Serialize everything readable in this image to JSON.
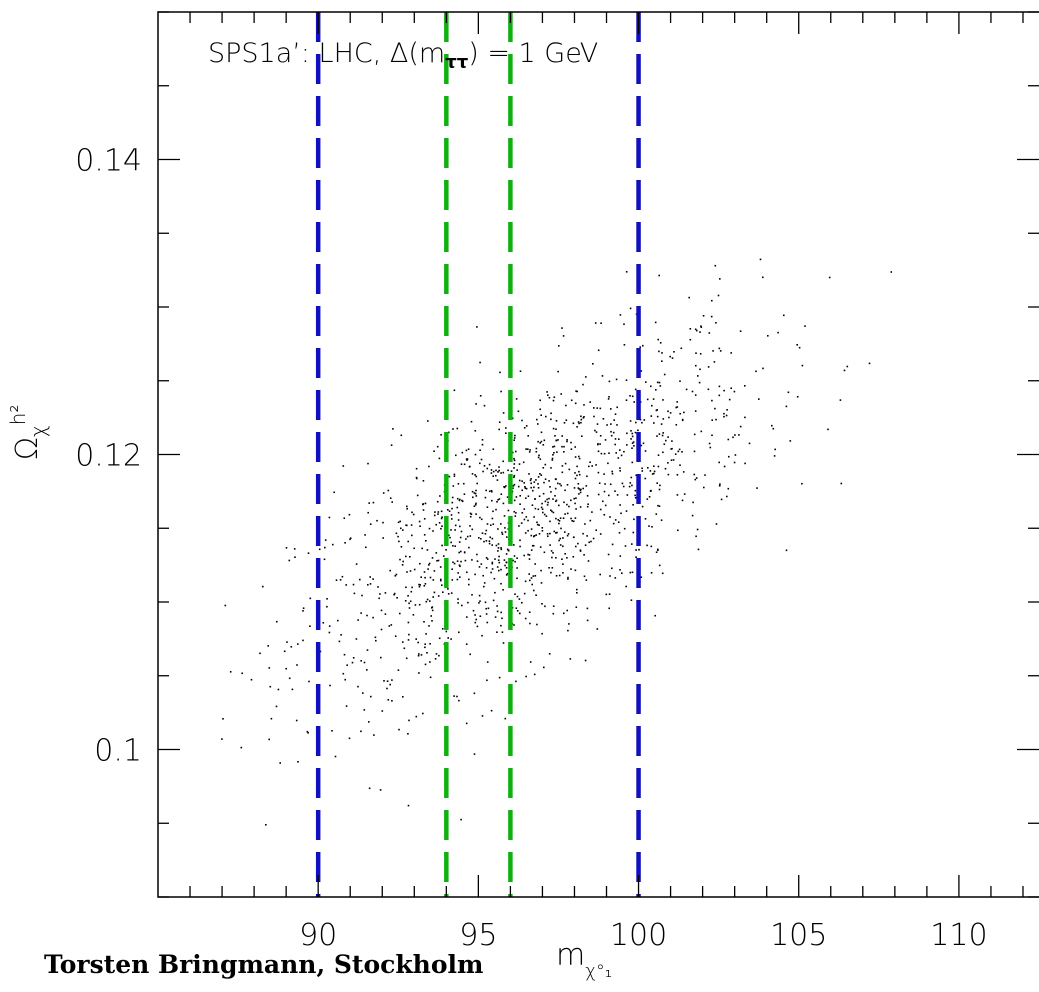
{
  "chart_data": {
    "type": "scatter",
    "annotation": "SPS1a’: LHC, Δ(m",
    "annotation_sub": "ττ",
    "annotation_tail": ") = 1 GeV",
    "xlabel_main": "m",
    "xlabel_sub": "χ°₁",
    "ylabel_main": "Ω",
    "ylabel_sub": "χ",
    "ylabel_sup": "h²",
    "xlim": [
      85.0,
      112.5
    ],
    "ylim": [
      0.09,
      0.15
    ],
    "x_ticks": [
      90,
      95,
      100,
      105,
      110
    ],
    "x_tick_labels": [
      "90",
      "95",
      "100",
      "105",
      "110"
    ],
    "y_ticks": [
      0.1,
      0.12,
      0.14
    ],
    "y_tick_labels": [
      "0.1",
      "0.12",
      "0.14"
    ],
    "vlines": [
      {
        "x": 90,
        "color": "#1010c0"
      },
      {
        "x": 94,
        "color": "#10b010"
      },
      {
        "x": 96,
        "color": "#10b010"
      },
      {
        "x": 100,
        "color": "#1010c0"
      }
    ],
    "scatter_trend": {
      "x0": 88.0,
      "y0": 0.106,
      "slope": 0.00115,
      "spread": 0.0045,
      "x_center": 96.5,
      "x_sd": 3.6,
      "n": 1350
    },
    "point_color": "#000000"
  },
  "credit": "Torsten Bringmann, Stockholm"
}
